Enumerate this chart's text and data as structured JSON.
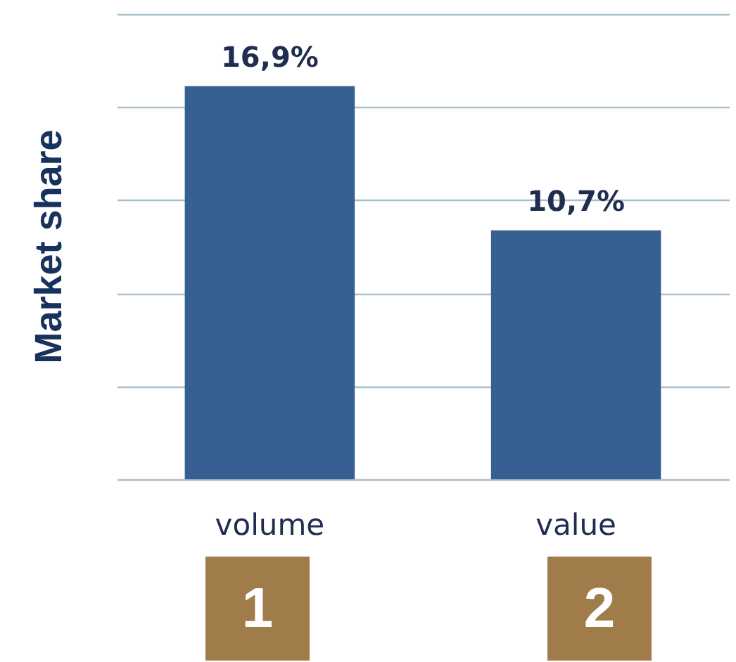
{
  "chart_data": {
    "type": "bar",
    "ylabel": "Market share",
    "categories": [
      "volume",
      "value"
    ],
    "values": [
      16.9,
      10.7
    ],
    "value_labels": [
      "16,9%",
      "10,7%"
    ],
    "color": "#376092",
    "ylim": [
      0,
      20
    ],
    "yticks": [
      0,
      4,
      8,
      12,
      16,
      20
    ],
    "grid": "y",
    "tick_labels": "x",
    "annotations": [
      "1",
      "2"
    ]
  }
}
